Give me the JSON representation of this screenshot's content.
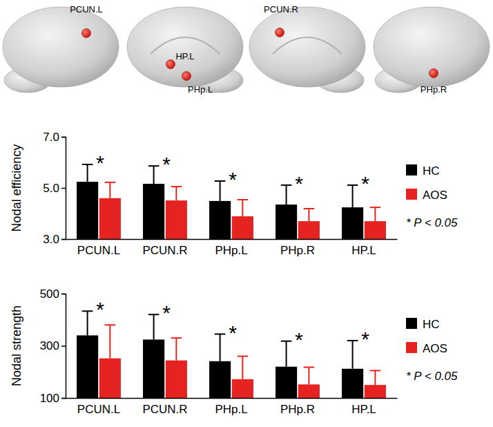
{
  "brain_map": {
    "regions": [
      "PCUN.L",
      "HP.L",
      "PHp.L",
      "PCUN.R",
      "PHp.R"
    ]
  },
  "chart_data": [
    {
      "type": "bar",
      "y_label": "Nodal efficiency",
      "categories": [
        "PCUN.L",
        "PCUN.R",
        "PHp.L",
        "PHp.R",
        "HP.L"
      ],
      "series": [
        {
          "name": "HC",
          "color": "#000000",
          "values": [
            5.24,
            5.16,
            4.49,
            4.35,
            4.24
          ],
          "errors": [
            0.68,
            0.7,
            0.78,
            0.76,
            0.87
          ]
        },
        {
          "name": "AOS",
          "color": "#e52421",
          "values": [
            4.6,
            4.51,
            3.89,
            3.7,
            3.7
          ],
          "errors": [
            0.62,
            0.54,
            0.65,
            0.49,
            0.54
          ]
        }
      ],
      "ylim": [
        3,
        7
      ],
      "yticks": [
        {
          "value": 3,
          "label": "3.0"
        },
        {
          "value": 5,
          "label": "5.0"
        },
        {
          "value": 7,
          "label": "7.0"
        }
      ],
      "significance": [
        "*",
        "*",
        "*",
        "*",
        "*"
      ],
      "note": "* P < 0.05",
      "legend": "right"
    },
    {
      "type": "bar",
      "y_label": "Nodal strength",
      "categories": [
        "PCUN.L",
        "PCUN.R",
        "PHp.L",
        "PHp.R",
        "HP.L"
      ],
      "series": [
        {
          "name": "HC",
          "color": "#000000",
          "values": [
            340,
            324,
            241,
            220,
            212
          ],
          "errors": [
            93,
            96,
            104,
            98,
            108
          ]
        },
        {
          "name": "AOS",
          "color": "#e52421",
          "values": [
            252,
            244,
            172,
            152,
            150
          ],
          "errors": [
            128,
            86,
            88,
            66,
            55
          ]
        }
      ],
      "ylim": [
        100,
        500
      ],
      "yticks": [
        100,
        300,
        500
      ],
      "significance": [
        "*",
        "*",
        "*",
        "*",
        "*"
      ],
      "note": "* P < 0.05",
      "legend": "right"
    }
  ]
}
